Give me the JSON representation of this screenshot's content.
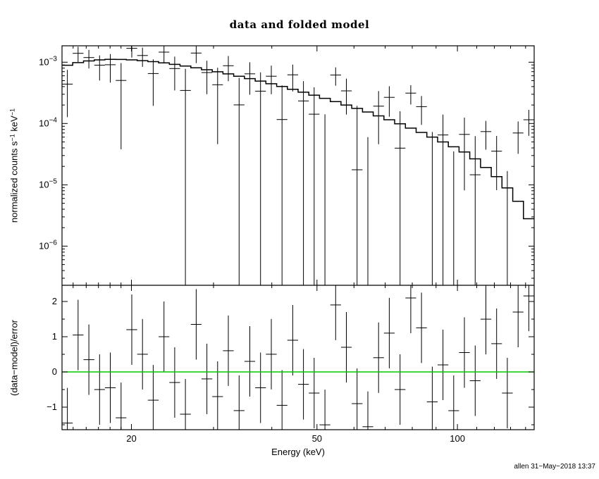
{
  "title": "data and folded model",
  "xlabel": "Energy (keV)",
  "watermark": "allen 31−May−2018 13:37",
  "top_panel": {
    "ylabel_parts": [
      {
        "t": "normalized counts s"
      },
      {
        "t": "−1"
      },
      {
        "t": " keV"
      },
      {
        "t": "−1"
      }
    ]
  },
  "bottom_panel": {
    "ylabel": "(data−model)/error"
  },
  "chart_data": {
    "type": "line",
    "title": "data and folded model",
    "xlabel": "Energy (keV)",
    "xscale": "log",
    "xlim": [
      14.2,
      146.06
    ],
    "xticks": [
      20,
      50,
      100
    ],
    "xminor": [
      15,
      16,
      17,
      18,
      19,
      30,
      40,
      60,
      70,
      80,
      90,
      110,
      120,
      130,
      140
    ],
    "panels": [
      {
        "name": "spectrum",
        "ylabel": "normalized counts s^-1 keV^-1",
        "yscale": "log",
        "ylim": [
          2.3e-07,
          0.00185
        ],
        "ytick_exponents": [
          -3,
          -4,
          -5,
          -6
        ]
      },
      {
        "name": "delchi-residuals",
        "ylabel": "(data-model)/error",
        "yscale": "linear",
        "ylim": [
          -1.64,
          2.46
        ],
        "yticks": [
          -1,
          0,
          1,
          2
        ],
        "yminor_step": 0.5,
        "residual_bar_halfwidth": 1,
        "zero_line": {
          "y": 0,
          "color": "#00cc00"
        }
      }
    ],
    "series": [
      {
        "name": "data",
        "style": "errorbar-cross",
        "color": "#000000"
      },
      {
        "name": "folded model",
        "style": "step-histogram",
        "color": "#000000"
      }
    ],
    "bin_edges_keV": [
      14.2,
      14.97,
      15.79,
      16.65,
      17.55,
      18.51,
      19.51,
      20.58,
      21.69,
      22.88,
      24.12,
      25.43,
      26.82,
      28.27,
      29.81,
      31.43,
      33.14,
      34.95,
      36.85,
      38.85,
      40.97,
      43.19,
      45.54,
      48.02,
      50.63,
      53.39,
      56.29,
      59.35,
      62.58,
      65.99,
      69.58,
      73.36,
      77.35,
      81.56,
      86.0,
      90.68,
      95.61,
      100.81,
      106.29,
      112.08,
      118.17,
      124.6,
      131.38,
      138.53,
      146.06
    ],
    "data_rate": [
      0.000439,
      0.001394,
      0.001188,
      0.000894,
      0.000909,
      0.000503,
      0.00168,
      0.001283,
      0.000653,
      0.00146,
      0.000788,
      0.000346,
      0.00141,
      0.000678,
      0.000429,
      0.000876,
      0.000201,
      0.000645,
      0.000337,
      0.00059,
      0.000116,
      0.000623,
      0.000233,
      0.000142,
      -9e-05,
      0.000618,
      0.00034,
      1.76e-05,
      -0.000109,
      0.000192,
      0.000267,
      3.96e-05,
      0.000313,
      0.000188,
      -1.14e-05,
      6.5e-05,
      -3.17e-05,
      6.64e-05,
      1.46e-05,
      7.39e-05,
      3.54e-05,
      -2.85e-06,
      7e-05,
      0.000115
    ],
    "data_err": [
      0.000312,
      0.000393,
      0.000399,
      0.000392,
      0.000444,
      0.000465,
      0.000491,
      0.000445,
      0.000459,
      0.000487,
      0.000442,
      0.000433,
      0.000445,
      0.000377,
      0.000383,
      0.000386,
      0.000354,
      0.000351,
      0.000344,
      0.000289,
      0.000302,
      0.00029,
      0.000259,
      0.000247,
      0.000231,
      0.000205,
      0.0002,
      0.000176,
      0.000169,
      0.000146,
      0.000138,
      0.000119,
      0.000109,
      9.3e-05,
      8.4e-05,
      7.5e-05,
      6.67e-05,
      5.83e-05,
      4.77e-05,
      3.65e-05,
      2.72e-05,
      1.96e-05,
      3.8e-05,
      5.2e-05
    ],
    "model_rate": [
      0.000892,
      0.000982,
      0.001049,
      0.00109,
      0.001109,
      0.001108,
      0.001091,
      0.00106,
      0.001021,
      0.000973,
      0.000921,
      0.000866,
      0.000809,
      0.000753,
      0.000697,
      0.000644,
      0.00059,
      0.00054,
      0.000492,
      0.000445,
      0.000402,
      0.000362,
      0.000324,
      0.00029,
      0.000257,
      0.000228,
      0.0002,
      0.000176,
      0.000154,
      0.000133,
      0.000115,
      9.9e-05,
      8.4e-05,
      7.15e-05,
      6e-05,
      5e-05,
      4.17e-05,
      3.43e-05,
      2.65e-05,
      1.92e-05,
      1.36e-05,
      8.9e-06,
      5.4e-06,
      2.8e-06
    ]
  }
}
